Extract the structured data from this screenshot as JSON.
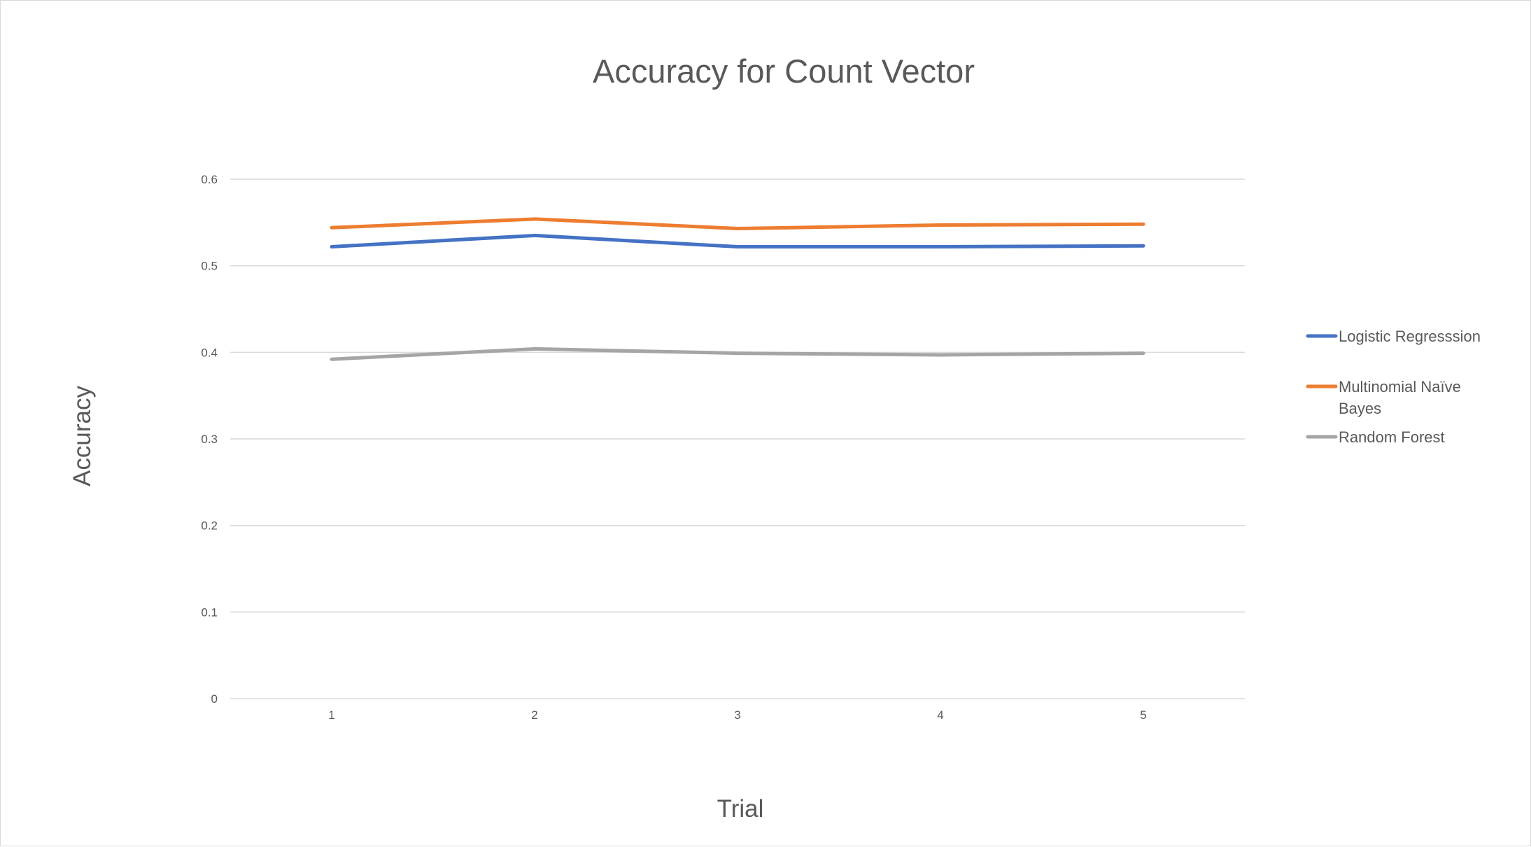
{
  "chart_data": {
    "type": "line",
    "title": "Accuracy for Count Vector",
    "xlabel": "Trial",
    "ylabel": "Accuracy",
    "categories": [
      "1",
      "2",
      "3",
      "4",
      "5"
    ],
    "ylim": [
      0,
      0.6
    ],
    "yticks": [
      "0",
      "0.1",
      "0.2",
      "0.3",
      "0.4",
      "0.5",
      "0.6"
    ],
    "grid": true,
    "legend_position": "right",
    "series": [
      {
        "name": "Logistic Regresssion",
        "name_lines": [
          "Logistic Regresssion"
        ],
        "color": "#4472C4",
        "values": [
          0.522,
          0.535,
          0.522,
          0.522,
          0.523
        ]
      },
      {
        "name": "Multinomial Naïve Bayes",
        "name_lines": [
          "Multinomial Naïve",
          "Bayes"
        ],
        "color": "#ED7D31",
        "values": [
          0.544,
          0.554,
          0.543,
          0.547,
          0.548
        ]
      },
      {
        "name": "Random Forest",
        "name_lines": [
          "Random Forest"
        ],
        "color": "#A5A5A5",
        "values": [
          0.392,
          0.404,
          0.399,
          0.397,
          0.399
        ]
      }
    ]
  }
}
